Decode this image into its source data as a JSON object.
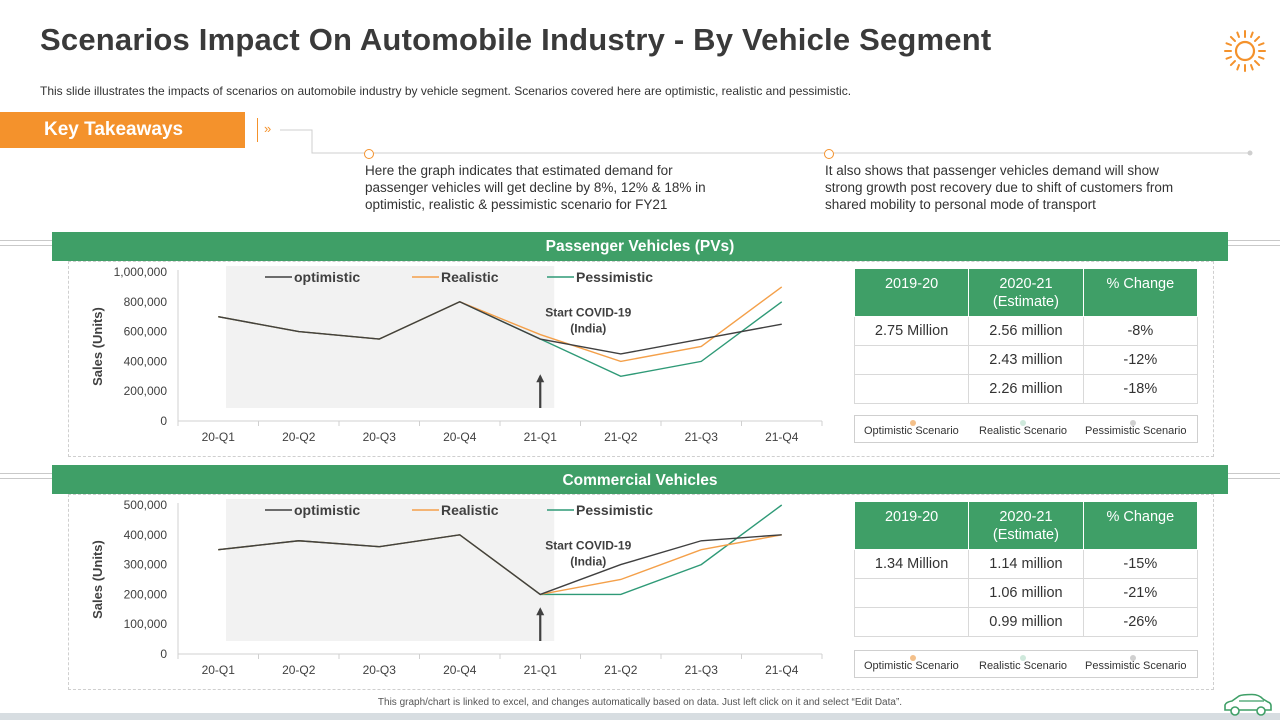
{
  "title": "Scenarios Impact On Automobile Industry - By Vehicle Segment",
  "subtitle": "This slide illustrates the impacts of scenarios on automobile industry by vehicle  segment. Scenarios covered  here are optimistic, realistic and pessimistic.",
  "key_takeaways": {
    "label": "Key Takeaways",
    "chevron": "»",
    "points": [
      "Here the graph indicates that estimated demand for passenger vehicles will get decline by 8%, 12% & 18% in optimistic, realistic & pessimistic scenario for FY21",
      "It also shows that passenger vehicles demand will show strong growth post recovery due to shift of customers from shared mobility to personal mode of transport"
    ]
  },
  "colors": {
    "green": "#3f9f67",
    "orange": "#f4922c",
    "optimistic": "#404040",
    "realistic": "#f4a04a",
    "pessimistic": "#2f9a77",
    "shade": "#f2f2f2"
  },
  "sections": [
    {
      "heading": "Passenger Vehicles (PVs)",
      "table": {
        "headers": [
          "2019-20",
          "2020-21 (Estimate)",
          "% Change"
        ],
        "rows": [
          [
            "2.75 Million",
            "2.56 million",
            "-8%"
          ],
          [
            "",
            "2.43 million",
            "-12%"
          ],
          [
            "",
            "2.26 million",
            "-18%"
          ]
        ]
      },
      "legend": [
        "Optimistic Scenario",
        "Realistic Scenario",
        "Pessimistic Scenario"
      ]
    },
    {
      "heading": "Commercial Vehicles",
      "table": {
        "headers": [
          "2019-20",
          "2020-21 (Estimate)",
          "% Change"
        ],
        "rows": [
          [
            "1.34 Million",
            "1.14 million",
            "-15%"
          ],
          [
            "",
            "1.06 million",
            "-21%"
          ],
          [
            "",
            "0.99 million",
            "-26%"
          ]
        ]
      },
      "legend": [
        "Optimistic Scenario",
        "Realistic Scenario",
        "Pessimistic Scenario"
      ]
    }
  ],
  "chart_data": [
    {
      "type": "line",
      "title": "Passenger Vehicles (PVs)",
      "xlabel": "",
      "ylabel": "Sales (Units)",
      "categories": [
        "20-Q1",
        "20-Q2",
        "20-Q3",
        "20-Q4",
        "21-Q1",
        "21-Q2",
        "21-Q3",
        "21-Q4"
      ],
      "yticks": [
        "0",
        "200,000",
        "400,000",
        "600,000",
        "800,000",
        "1,000,000"
      ],
      "ylim": [
        0,
        1000000
      ],
      "annotation": "Start COVID-19 (India)",
      "shaded_range": [
        "20-Q1",
        "21-Q1"
      ],
      "series": [
        {
          "name": "optimistic",
          "values": [
            700000,
            600000,
            550000,
            800000,
            550000,
            450000,
            550000,
            650000
          ]
        },
        {
          "name": "Realistic",
          "values": [
            700000,
            600000,
            550000,
            800000,
            580000,
            400000,
            500000,
            900000
          ]
        },
        {
          "name": "Pessimistic",
          "values": [
            700000,
            600000,
            550000,
            800000,
            550000,
            300000,
            400000,
            800000
          ]
        }
      ]
    },
    {
      "type": "line",
      "title": "Commercial Vehicles",
      "xlabel": "",
      "ylabel": "Sales (Units)",
      "categories": [
        "20-Q1",
        "20-Q2",
        "20-Q3",
        "20-Q4",
        "21-Q1",
        "21-Q2",
        "21-Q3",
        "21-Q4"
      ],
      "yticks": [
        "0",
        "100,000",
        "200,000",
        "300,000",
        "400,000",
        "500,000"
      ],
      "ylim": [
        0,
        500000
      ],
      "annotation": "Start COVID-19 (India)",
      "shaded_range": [
        "20-Q1",
        "21-Q1"
      ],
      "series": [
        {
          "name": "optimistic",
          "values": [
            350000,
            380000,
            360000,
            400000,
            200000,
            300000,
            380000,
            400000
          ]
        },
        {
          "name": "Realistic",
          "values": [
            350000,
            380000,
            360000,
            400000,
            200000,
            250000,
            350000,
            400000
          ]
        },
        {
          "name": "Pessimistic",
          "values": [
            350000,
            380000,
            360000,
            400000,
            200000,
            200000,
            300000,
            500000
          ]
        }
      ]
    }
  ],
  "footer": "This graph/chart is linked to excel, and changes automatically based on data. Just left click on it and select “Edit Data”."
}
